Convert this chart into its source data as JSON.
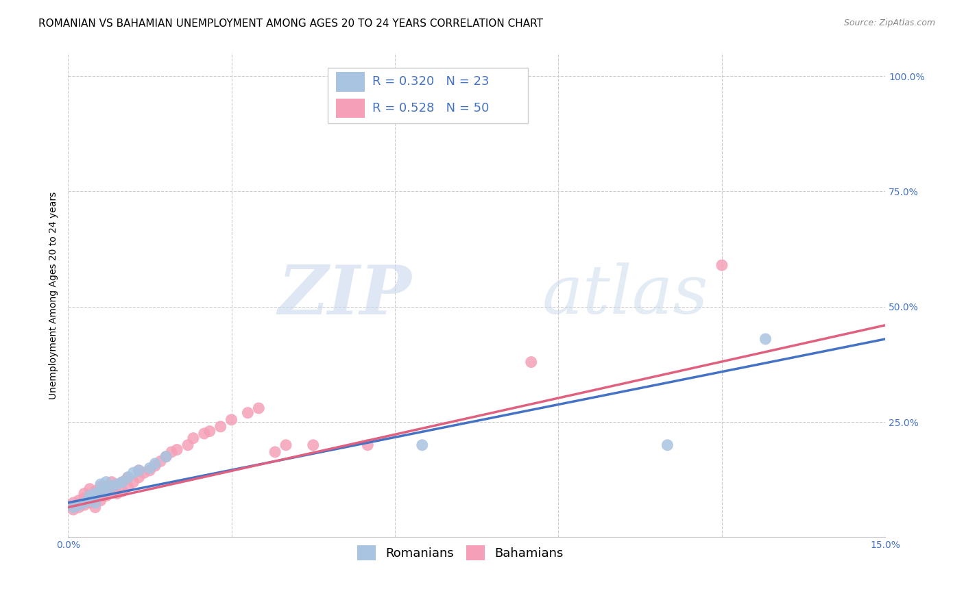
{
  "title": "ROMANIAN VS BAHAMIAN UNEMPLOYMENT AMONG AGES 20 TO 24 YEARS CORRELATION CHART",
  "source": "Source: ZipAtlas.com",
  "ylabel": "Unemployment Among Ages 20 to 24 years",
  "xlabel": "",
  "xlim": [
    0.0,
    0.15
  ],
  "ylim": [
    0.0,
    1.05
  ],
  "xticks": [
    0.0,
    0.03,
    0.06,
    0.09,
    0.12,
    0.15
  ],
  "xticklabels": [
    "0.0%",
    "",
    "",
    "",
    "",
    "15.0%"
  ],
  "yticks": [
    0.0,
    0.25,
    0.5,
    0.75,
    1.0
  ],
  "yticklabels": [
    "",
    "25.0%",
    "50.0%",
    "75.0%",
    "100.0%"
  ],
  "grid_color": "#cccccc",
  "background_color": "#ffffff",
  "romanian_color": "#a8c4e0",
  "bahamian_color": "#f5a0b8",
  "romanian_line_color": "#4472c4",
  "bahamian_line_color": "#e06080",
  "legend_text_color": "#4472c4",
  "watermark_zip": "ZIP",
  "watermark_atlas": "atlas",
  "R_romanian": 0.32,
  "N_romanian": 23,
  "R_bahamian": 0.528,
  "N_bahamian": 50,
  "romanian_x": [
    0.001,
    0.002,
    0.003,
    0.004,
    0.004,
    0.005,
    0.005,
    0.006,
    0.006,
    0.007,
    0.007,
    0.008,
    0.009,
    0.01,
    0.011,
    0.012,
    0.013,
    0.015,
    0.016,
    0.018,
    0.065,
    0.11,
    0.128
  ],
  "romanian_y": [
    0.065,
    0.07,
    0.075,
    0.08,
    0.09,
    0.075,
    0.095,
    0.1,
    0.115,
    0.1,
    0.12,
    0.11,
    0.115,
    0.12,
    0.13,
    0.14,
    0.145,
    0.15,
    0.16,
    0.175,
    0.2,
    0.2,
    0.43
  ],
  "bahamian_x": [
    0.001,
    0.001,
    0.002,
    0.002,
    0.003,
    0.003,
    0.003,
    0.004,
    0.004,
    0.004,
    0.005,
    0.005,
    0.005,
    0.006,
    0.006,
    0.006,
    0.007,
    0.007,
    0.008,
    0.008,
    0.009,
    0.009,
    0.01,
    0.01,
    0.011,
    0.011,
    0.012,
    0.013,
    0.013,
    0.014,
    0.015,
    0.016,
    0.017,
    0.018,
    0.019,
    0.02,
    0.022,
    0.023,
    0.025,
    0.026,
    0.028,
    0.03,
    0.033,
    0.035,
    0.038,
    0.04,
    0.045,
    0.055,
    0.085,
    0.12
  ],
  "bahamian_y": [
    0.06,
    0.075,
    0.065,
    0.08,
    0.07,
    0.085,
    0.095,
    0.075,
    0.09,
    0.105,
    0.065,
    0.085,
    0.1,
    0.08,
    0.095,
    0.11,
    0.09,
    0.11,
    0.1,
    0.12,
    0.095,
    0.115,
    0.1,
    0.12,
    0.11,
    0.13,
    0.12,
    0.13,
    0.145,
    0.14,
    0.145,
    0.155,
    0.165,
    0.175,
    0.185,
    0.19,
    0.2,
    0.215,
    0.225,
    0.23,
    0.24,
    0.255,
    0.27,
    0.28,
    0.185,
    0.2,
    0.2,
    0.2,
    0.38,
    0.59
  ],
  "title_fontsize": 11,
  "axis_label_fontsize": 10,
  "tick_fontsize": 10,
  "legend_fontsize": 13,
  "source_fontsize": 9,
  "romanian_line_x": [
    0.0,
    0.15
  ],
  "romanian_line_y": [
    0.075,
    0.43
  ],
  "bahamian_line_x": [
    0.0,
    0.15
  ],
  "bahamian_line_y": [
    0.065,
    0.46
  ]
}
